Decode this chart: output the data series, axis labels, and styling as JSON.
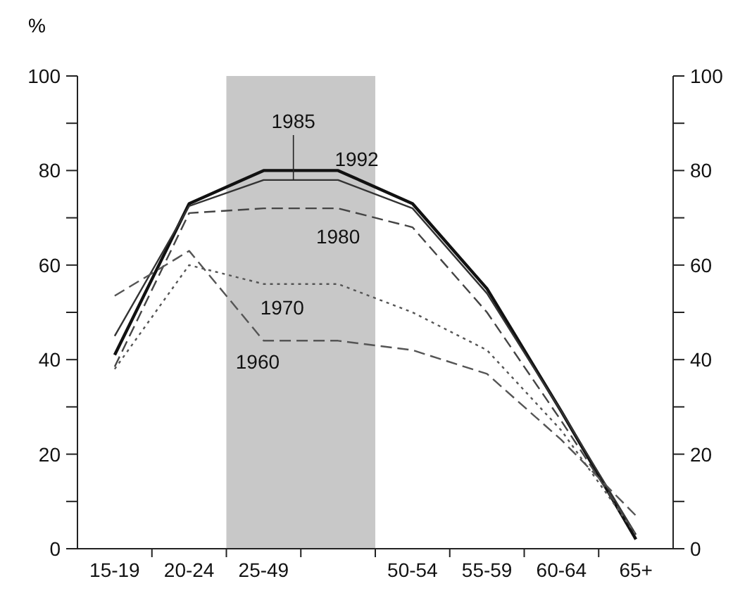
{
  "chart_data": {
    "type": "line",
    "ylabel": "%",
    "marker": "none",
    "categories": [
      "15-19",
      "20-24",
      "25-49",
      null,
      "50-54",
      "55-59",
      "60-64",
      "65+"
    ],
    "ylim": [
      0,
      100
    ],
    "yticks": [
      0,
      {
        "value": 10,
        "label": null
      },
      20,
      {
        "value": 30,
        "label": null
      },
      40,
      {
        "value": 50,
        "label": null
      },
      60,
      {
        "value": 70,
        "label": null
      },
      80,
      {
        "value": 90,
        "label": null
      },
      100
    ],
    "y2lim": [
      0,
      100
    ],
    "y2ticks": [
      0,
      {
        "value": 10,
        "label": null
      },
      20,
      {
        "value": 30,
        "label": null
      },
      40,
      {
        "value": 50,
        "label": null
      },
      60,
      {
        "value": 70,
        "label": null
      },
      80,
      {
        "value": 90,
        "label": null
      },
      100
    ],
    "series": [
      {
        "name": "1992",
        "color": "#111111",
        "line_style": "solid",
        "values": [
          41,
          73,
          80,
          80,
          73,
          55,
          29,
          2
        ]
      },
      {
        "name": "1985",
        "color": "#333333",
        "line_style": "solid",
        "values": [
          45,
          72.5,
          78,
          78,
          72,
          54,
          29,
          3
        ]
      },
      {
        "name": "1980",
        "color": "#444444",
        "line_style": "dashed",
        "values": [
          38.5,
          71,
          72,
          72,
          68,
          50,
          27,
          3
        ]
      },
      {
        "name": "1970",
        "color": "#555555",
        "line_style": "dotted",
        "values": [
          38,
          60,
          56,
          56,
          50,
          42,
          25,
          3
        ]
      },
      {
        "name": "1960",
        "color": "#555555",
        "line_style": "dashed",
        "values": [
          53.5,
          63,
          44,
          44,
          42,
          37,
          23,
          7
        ]
      }
    ]
  }
}
